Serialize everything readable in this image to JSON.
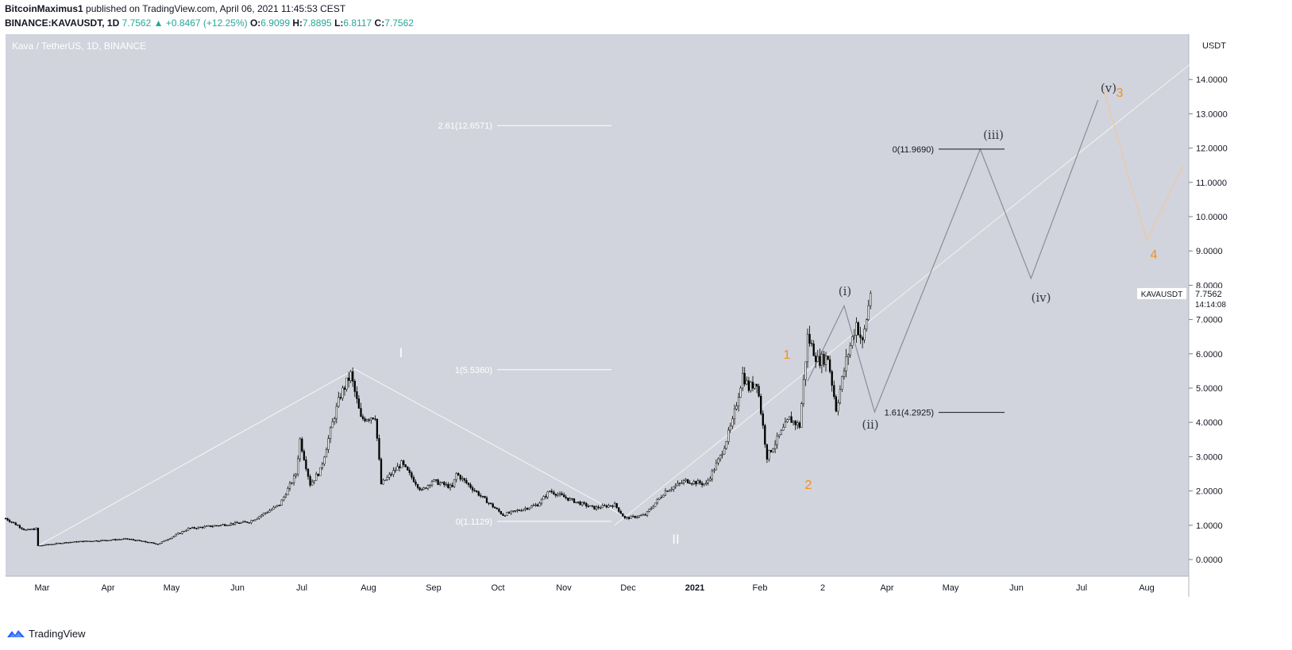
{
  "header": {
    "publisher": "BitcoinMaximus1",
    "published_text": "published on TradingView.com, April 06, 2021 11:45:53 CEST",
    "symbol": "BINANCE:KAVAUSDT, 1D",
    "last": "7.7562",
    "change": "+0.8467 (+12.25%)",
    "o_label": "O:",
    "o": "6.9099",
    "h_label": "H:",
    "h": "7.8895",
    "l_label": "L:",
    "l": "6.8117",
    "c_label": "C:",
    "c": "7.7562",
    "up_arrow": "▲"
  },
  "footer": {
    "brand": "TradingView",
    "logo_icon": "tradingview-logo-icon"
  },
  "colors": {
    "plot_bg": "#d1d4dc",
    "candle": "#000000",
    "white_lines": "#ffffff",
    "gray_wave": "#8a8d96",
    "orange": "#f58e1e",
    "axis_text": "#131722"
  },
  "chart_data": {
    "type": "candlestick",
    "title": "Kava / TetherUS, 1D, BINANCE",
    "y_unit": "USDT",
    "y_ticks": [
      "0.0000",
      "1.0000",
      "2.0000",
      "3.0000",
      "4.0000",
      "5.0000",
      "6.0000",
      "7.0000",
      "8.0000",
      "9.0000",
      "10.0000",
      "11.0000",
      "12.0000",
      "13.0000",
      "14.0000"
    ],
    "x_ticks": [
      "Mar",
      "Apr",
      "May",
      "Jun",
      "Jul",
      "Aug",
      "Sep",
      "Oct",
      "Nov",
      "Dec",
      "2021",
      "Feb",
      "2",
      "Apr",
      "May",
      "Jun",
      "Jul",
      "Aug"
    ],
    "last_price": {
      "symbol": "KAVAUSDT",
      "value": "7.7562",
      "countdown": "14:14:08"
    },
    "price_anchors": [
      {
        "t": 0,
        "p": 1.2
      },
      {
        "t": 10,
        "p": 0.85
      },
      {
        "t": 15,
        "p": 0.9
      },
      {
        "t": 16,
        "p": 0.4
      },
      {
        "t": 30,
        "p": 0.5
      },
      {
        "t": 45,
        "p": 0.55
      },
      {
        "t": 60,
        "p": 0.6
      },
      {
        "t": 75,
        "p": 0.45
      },
      {
        "t": 90,
        "p": 0.9
      },
      {
        "t": 105,
        "p": 1.0
      },
      {
        "t": 120,
        "p": 1.1
      },
      {
        "t": 135,
        "p": 1.6
      },
      {
        "t": 143,
        "p": 2.5
      },
      {
        "t": 145,
        "p": 3.5
      },
      {
        "t": 150,
        "p": 2.2
      },
      {
        "t": 155,
        "p": 2.6
      },
      {
        "t": 162,
        "p": 4.2
      },
      {
        "t": 165,
        "p": 4.8
      },
      {
        "t": 170,
        "p": 5.4
      },
      {
        "t": 175,
        "p": 4.1
      },
      {
        "t": 182,
        "p": 4.2
      },
      {
        "t": 185,
        "p": 2.2
      },
      {
        "t": 195,
        "p": 2.8
      },
      {
        "t": 205,
        "p": 2.0
      },
      {
        "t": 210,
        "p": 2.3
      },
      {
        "t": 220,
        "p": 2.1
      },
      {
        "t": 222,
        "p": 2.5
      },
      {
        "t": 235,
        "p": 1.8
      },
      {
        "t": 245,
        "p": 1.3
      },
      {
        "t": 262,
        "p": 1.6
      },
      {
        "t": 268,
        "p": 2.0
      },
      {
        "t": 280,
        "p": 1.7
      },
      {
        "t": 290,
        "p": 1.5
      },
      {
        "t": 300,
        "p": 1.6
      },
      {
        "t": 305,
        "p": 1.2
      },
      {
        "t": 315,
        "p": 1.3
      },
      {
        "t": 325,
        "p": 2.0
      },
      {
        "t": 335,
        "p": 2.3
      },
      {
        "t": 345,
        "p": 2.2
      },
      {
        "t": 352,
        "p": 3.0
      },
      {
        "t": 358,
        "p": 4.0
      },
      {
        "t": 363,
        "p": 5.4
      },
      {
        "t": 366,
        "p": 5.0
      },
      {
        "t": 370,
        "p": 5.2
      },
      {
        "t": 375,
        "p": 3.0
      },
      {
        "t": 381,
        "p": 3.6
      },
      {
        "t": 386,
        "p": 4.1
      },
      {
        "t": 391,
        "p": 3.9
      },
      {
        "t": 395,
        "p": 6.5
      },
      {
        "t": 400,
        "p": 5.8
      },
      {
        "t": 405,
        "p": 5.9
      },
      {
        "t": 409,
        "p": 4.4
      },
      {
        "t": 414,
        "p": 5.8
      },
      {
        "t": 419,
        "p": 6.9
      },
      {
        "t": 422,
        "p": 6.3
      },
      {
        "t": 426,
        "p": 7.76
      }
    ],
    "fib_levels": [
      {
        "label": "2.61(12.6571)",
        "value": 12.6571,
        "color": "white"
      },
      {
        "label": "1(5.5360)",
        "value": 5.536,
        "color": "white"
      },
      {
        "label": "0(1.1129)",
        "value": 1.1129,
        "color": "white"
      },
      {
        "label": "0(11.9690)",
        "value": 11.969,
        "color": "black"
      },
      {
        "label": "1.61(4.2925)",
        "value": 4.2925,
        "color": "black"
      }
    ],
    "wave_labels": [
      {
        "text": "I",
        "color": "white"
      },
      {
        "text": "II",
        "color": "white"
      },
      {
        "text": "1",
        "color": "orange"
      },
      {
        "text": "2",
        "color": "orange"
      },
      {
        "text": "3",
        "color": "orange"
      },
      {
        "text": "4",
        "color": "orange"
      },
      {
        "text": "(i)",
        "color": "dark"
      },
      {
        "text": "(ii)",
        "color": "dark"
      },
      {
        "text": "(iii)",
        "color": "dark"
      },
      {
        "text": "(iv)",
        "color": "dark"
      },
      {
        "text": "(v)",
        "color": "dark"
      }
    ],
    "wave_paths": {
      "cycle": [
        {
          "t": 16,
          "p": 0.4
        },
        {
          "t": 172,
          "p": 5.55
        },
        {
          "t": 308,
          "p": 1.15
        }
      ],
      "minor": [
        {
          "t": 395,
          "p": 5.2
        },
        {
          "t": 413,
          "p": 7.4
        },
        {
          "t": 428,
          "p": 4.3
        },
        {
          "t": 480,
          "p": 11.97
        },
        {
          "t": 505,
          "p": 8.2
        },
        {
          "t": 538,
          "p": 13.4
        }
      ],
      "trend": [
        {
          "t": 300,
          "p": 1.0
        },
        {
          "t": 595,
          "p": 15.0
        }
      ],
      "orange_path": [
        {
          "t": 540,
          "p": 13.9
        },
        {
          "t": 562,
          "p": 9.3
        },
        {
          "t": 580,
          "p": 11.5
        }
      ]
    }
  }
}
